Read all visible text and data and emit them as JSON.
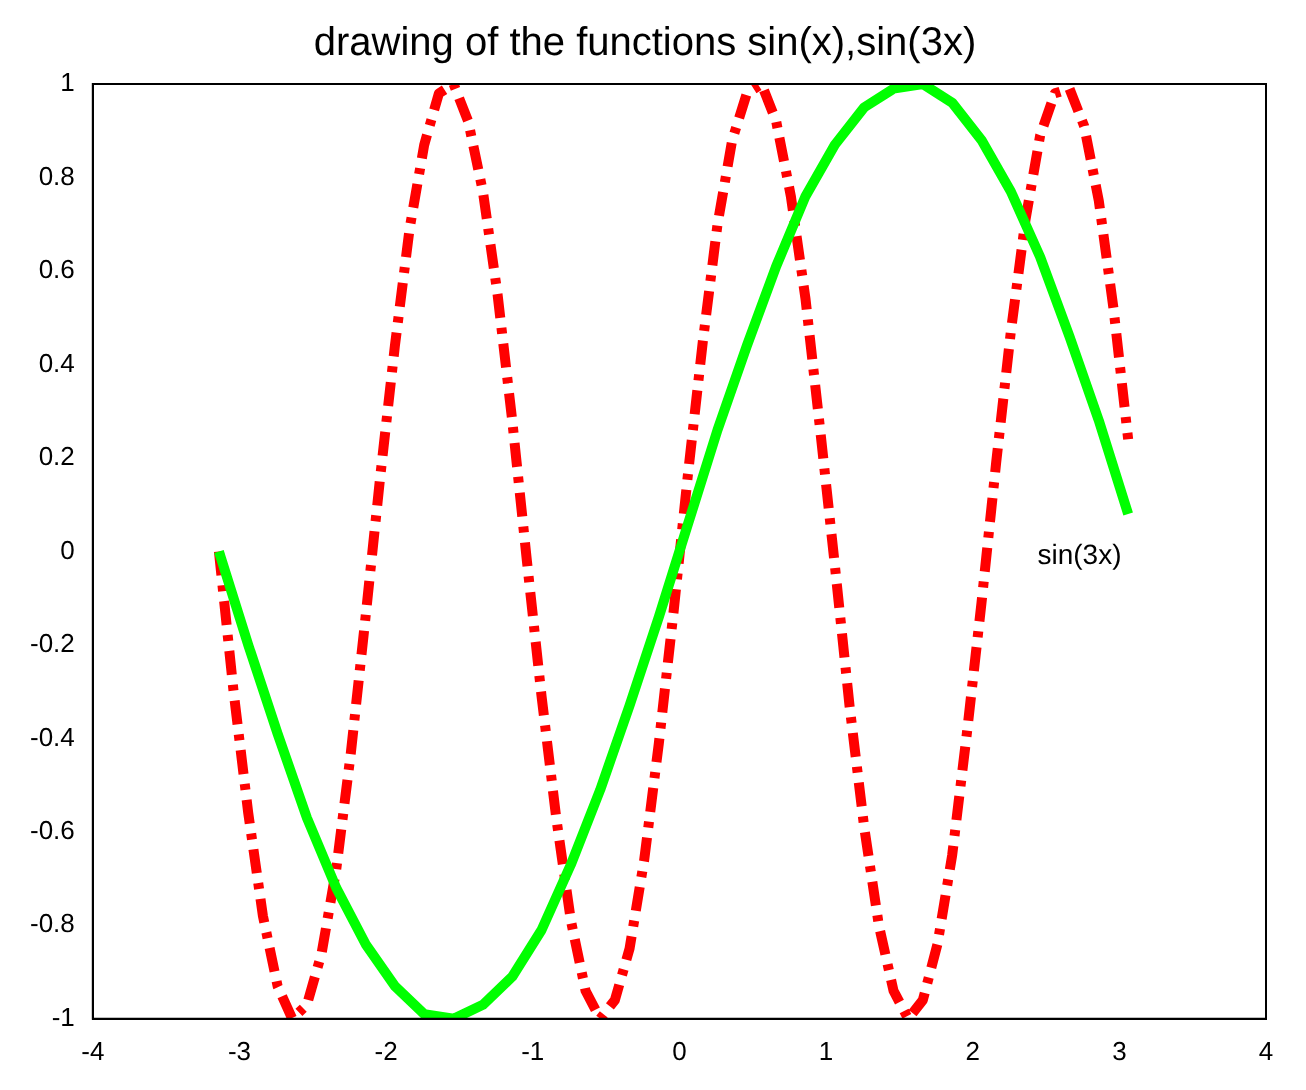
{
  "chart_data": {
    "type": "line",
    "title": "drawing of the functions sin(x),sin(3x)",
    "series": [
      {
        "color": "#00ff00",
        "line_style": "solid",
        "x": [
          -3.14,
          -2.94,
          -2.74,
          -2.54,
          -2.34,
          -2.14,
          -1.94,
          -1.74,
          -1.54,
          -1.34,
          -1.14,
          -0.94,
          -0.74,
          -0.54,
          -0.34,
          -0.14,
          0.06,
          0.26,
          0.46,
          0.66,
          0.86,
          1.06,
          1.26,
          1.46,
          1.66,
          1.86,
          2.06,
          2.26,
          2.46,
          2.66,
          2.86,
          3.06
        ],
        "values": [
          0,
          -0.2,
          -0.39,
          -0.57,
          -0.72,
          -0.84,
          -0.93,
          -0.99,
          -1,
          -0.97,
          -0.91,
          -0.81,
          -0.67,
          -0.51,
          -0.33,
          -0.14,
          0.06,
          0.26,
          0.44,
          0.61,
          0.76,
          0.87,
          0.95,
          0.99,
          1,
          0.96,
          0.88,
          0.77,
          0.63,
          0.46,
          0.28,
          0.08
        ]
      },
      {
        "color": "#ff0000",
        "line_style": "dashed",
        "x": [
          -3.14,
          -3.04,
          -2.94,
          -2.84,
          -2.74,
          -2.64,
          -2.54,
          -2.44,
          -2.34,
          -2.24,
          -2.14,
          -2.04,
          -1.94,
          -1.84,
          -1.74,
          -1.64,
          -1.54,
          -1.44,
          -1.34,
          -1.24,
          -1.14,
          -1.04,
          -0.94,
          -0.84,
          -0.74,
          -0.64,
          -0.54,
          -0.44,
          -0.34,
          -0.24,
          -0.14,
          -0.04,
          0.06,
          0.16,
          0.26,
          0.36,
          0.46,
          0.56,
          0.66,
          0.76,
          0.86,
          0.96,
          1.06,
          1.16,
          1.26,
          1.36,
          1.46,
          1.56,
          1.66,
          1.76,
          1.86,
          1.96,
          2.06,
          2.16,
          2.26,
          2.36,
          2.46,
          2.56,
          2.66,
          2.76,
          2.86,
          2.96,
          3.06
        ],
        "values": [
          0,
          -0.3,
          -0.56,
          -0.78,
          -0.93,
          -1,
          -0.97,
          -0.86,
          -0.68,
          -0.43,
          -0.14,
          0.16,
          0.44,
          0.69,
          0.87,
          0.98,
          1,
          0.92,
          0.77,
          0.55,
          0.28,
          -0.02,
          -0.31,
          -0.57,
          -0.79,
          -0.94,
          -1,
          -0.96,
          -0.85,
          -0.66,
          -0.41,
          -0.13,
          0.17,
          0.45,
          0.7,
          0.88,
          0.98,
          1,
          0.92,
          0.76,
          0.54,
          0.26,
          -0.03,
          -0.33,
          -0.59,
          -0.8,
          -0.94,
          -1,
          -0.96,
          -0.84,
          -0.65,
          -0.39,
          -0.11,
          0.19,
          0.47,
          0.71,
          0.89,
          0.98,
          0.99,
          0.91,
          0.75,
          0.52,
          0.24
        ]
      }
    ],
    "xlim": [
      -4,
      4
    ],
    "xticks": [
      -4,
      -3,
      -2,
      -1,
      0,
      1,
      2,
      3,
      4
    ],
    "ylim": [
      -1,
      1
    ],
    "yticks": [
      -1,
      -0.8,
      -0.6,
      -0.4,
      -0.2,
      0,
      0.2,
      0.4,
      0.6,
      0.8,
      1
    ],
    "grid": false,
    "legend": false,
    "marker": "none",
    "annotations": [
      "sin(3x)"
    ]
  }
}
